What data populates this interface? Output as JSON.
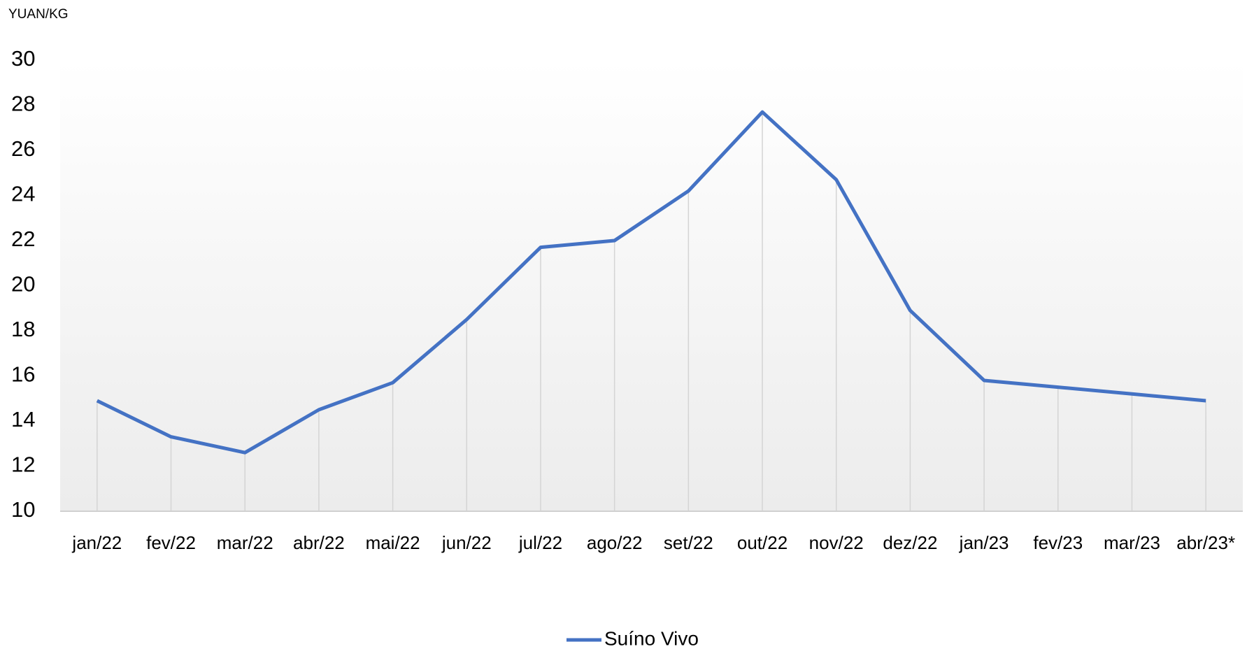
{
  "chart_data": {
    "type": "line",
    "y_axis_label": "YUAN/KG",
    "categories": [
      "jan/22",
      "fev/22",
      "mar/22",
      "abr/22",
      "mai/22",
      "jun/22",
      "jul/22",
      "ago/22",
      "set/22",
      "out/22",
      "nov/22",
      "dez/22",
      "jan/23",
      "fev/23",
      "mar/23",
      "abr/23*"
    ],
    "series": [
      {
        "name": "Suíno Vivo",
        "color": "#4472c4",
        "values": [
          14.9,
          13.3,
          12.6,
          14.5,
          15.7,
          18.5,
          21.7,
          22.0,
          24.2,
          27.7,
          24.7,
          18.9,
          15.8,
          15.5,
          15.2,
          14.9
        ]
      }
    ],
    "ylim": [
      10,
      30
    ],
    "yticks": [
      10,
      12,
      14,
      16,
      18,
      20,
      22,
      24,
      26,
      28,
      30
    ],
    "legend": "bottom"
  }
}
